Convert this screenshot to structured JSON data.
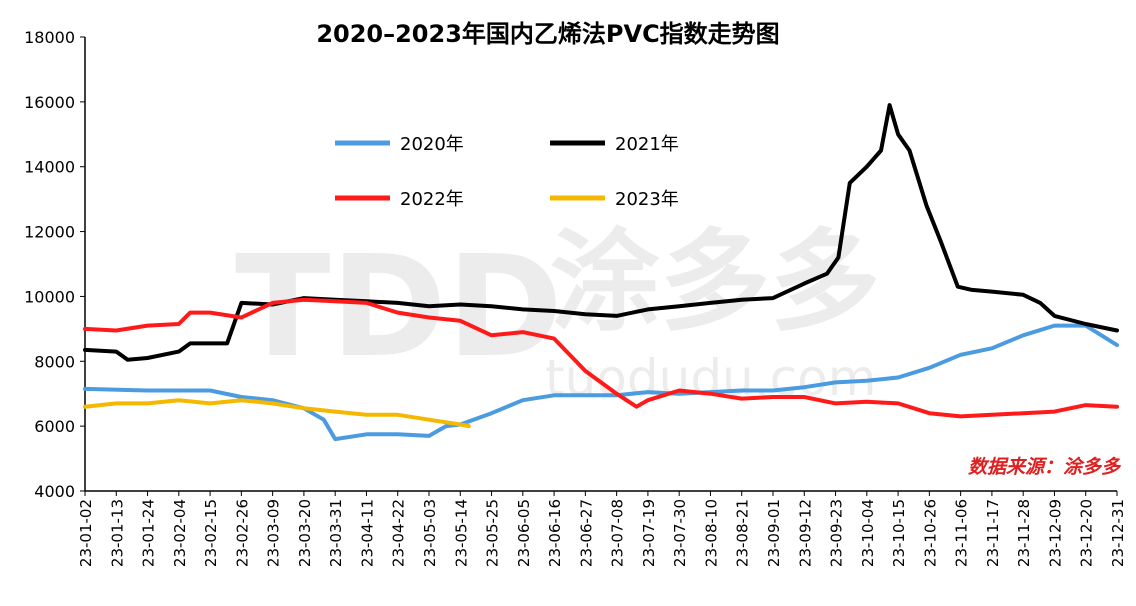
{
  "chart_data": {
    "type": "line",
    "title": "2020–2023年国内乙烯法PVC指数走势图",
    "source_note": "数据来源：涂多多",
    "watermark": "TDD 涂多多 tuodudu.com",
    "ylim": [
      4000,
      18000
    ],
    "yticks": [
      4000,
      6000,
      8000,
      10000,
      12000,
      14000,
      16000,
      18000
    ],
    "xticks": [
      "23-01-02",
      "23-01-13",
      "23-01-24",
      "23-02-04",
      "23-02-15",
      "23-02-26",
      "23-03-09",
      "23-03-20",
      "23-03-31",
      "23-04-11",
      "23-04-22",
      "23-05-03",
      "23-05-14",
      "23-05-25",
      "23-06-05",
      "23-06-16",
      "23-06-27",
      "23-07-08",
      "23-07-19",
      "23-07-30",
      "23-08-10",
      "23-08-21",
      "23-09-01",
      "23-09-12",
      "23-09-23",
      "23-10-04",
      "23-10-15",
      "23-10-26",
      "23-11-06",
      "23-11-17",
      "23-11-28",
      "23-12-09",
      "23-12-20",
      "23-12-31"
    ],
    "grid": false,
    "legend_placement": "top-center",
    "series": [
      {
        "name": "2020年",
        "color": "#4a9be0",
        "points": [
          [
            "23-01-02",
            7150
          ],
          [
            "23-01-24",
            7100
          ],
          [
            "23-02-15",
            7100
          ],
          [
            "23-02-26",
            6900
          ],
          [
            "23-03-09",
            6800
          ],
          [
            "23-03-20",
            6550
          ],
          [
            "23-03-27",
            6200
          ],
          [
            "23-03-31",
            5600
          ],
          [
            "23-04-11",
            5750
          ],
          [
            "23-04-22",
            5750
          ],
          [
            "23-05-03",
            5700
          ],
          [
            "23-05-09",
            6000
          ],
          [
            "23-05-14",
            6050
          ],
          [
            "23-05-25",
            6400
          ],
          [
            "23-06-05",
            6800
          ],
          [
            "23-06-16",
            6950
          ],
          [
            "23-06-27",
            6950
          ],
          [
            "23-07-08",
            6950
          ],
          [
            "23-07-19",
            7050
          ],
          [
            "23-07-30",
            7000
          ],
          [
            "23-08-10",
            7050
          ],
          [
            "23-08-21",
            7100
          ],
          [
            "23-09-01",
            7100
          ],
          [
            "23-09-12",
            7200
          ],
          [
            "23-09-23",
            7350
          ],
          [
            "23-10-04",
            7400
          ],
          [
            "23-10-15",
            7500
          ],
          [
            "23-10-26",
            7800
          ],
          [
            "23-11-06",
            8200
          ],
          [
            "23-11-17",
            8400
          ],
          [
            "23-11-28",
            8800
          ],
          [
            "23-12-09",
            9100
          ],
          [
            "23-12-20",
            9100
          ],
          [
            "23-12-31",
            8500
          ]
        ]
      },
      {
        "name": "2021年",
        "color": "#000000",
        "points": [
          [
            "23-01-02",
            8350
          ],
          [
            "23-01-13",
            8300
          ],
          [
            "23-01-17",
            8050
          ],
          [
            "23-01-24",
            8100
          ],
          [
            "23-02-04",
            8300
          ],
          [
            "23-02-08",
            8550
          ],
          [
            "23-02-21",
            8550
          ],
          [
            "23-02-26",
            9800
          ],
          [
            "23-03-09",
            9750
          ],
          [
            "23-03-20",
            9950
          ],
          [
            "23-03-31",
            9900
          ],
          [
            "23-04-11",
            9850
          ],
          [
            "23-04-22",
            9800
          ],
          [
            "23-05-03",
            9700
          ],
          [
            "23-05-14",
            9750
          ],
          [
            "23-05-25",
            9700
          ],
          [
            "23-06-05",
            9600
          ],
          [
            "23-06-16",
            9550
          ],
          [
            "23-06-27",
            9450
          ],
          [
            "23-07-08",
            9400
          ],
          [
            "23-07-19",
            9600
          ],
          [
            "23-07-30",
            9700
          ],
          [
            "23-08-10",
            9800
          ],
          [
            "23-08-21",
            9900
          ],
          [
            "23-09-01",
            9950
          ],
          [
            "23-09-12",
            10400
          ],
          [
            "23-09-20",
            10700
          ],
          [
            "23-09-24",
            11200
          ],
          [
            "23-09-28",
            13500
          ],
          [
            "23-10-04",
            14000
          ],
          [
            "23-10-09",
            14500
          ],
          [
            "23-10-12",
            15900
          ],
          [
            "23-10-15",
            15000
          ],
          [
            "23-10-19",
            14500
          ],
          [
            "23-10-25",
            12800
          ],
          [
            "23-10-30",
            11700
          ],
          [
            "23-11-05",
            10300
          ],
          [
            "23-11-10",
            10200
          ],
          [
            "23-11-17",
            10150
          ],
          [
            "23-11-28",
            10050
          ],
          [
            "23-12-04",
            9800
          ],
          [
            "23-12-09",
            9400
          ],
          [
            "23-12-20",
            9150
          ],
          [
            "23-12-31",
            8950
          ]
        ]
      },
      {
        "name": "2022年",
        "color": "#ff1a1a",
        "points": [
          [
            "23-01-02",
            9000
          ],
          [
            "23-01-13",
            8950
          ],
          [
            "23-01-24",
            9100
          ],
          [
            "23-02-04",
            9150
          ],
          [
            "23-02-08",
            9500
          ],
          [
            "23-02-15",
            9500
          ],
          [
            "23-02-26",
            9350
          ],
          [
            "23-03-09",
            9800
          ],
          [
            "23-03-20",
            9900
          ],
          [
            "23-03-31",
            9850
          ],
          [
            "23-04-11",
            9800
          ],
          [
            "23-04-22",
            9500
          ],
          [
            "23-05-03",
            9350
          ],
          [
            "23-05-14",
            9250
          ],
          [
            "23-05-25",
            8800
          ],
          [
            "23-06-05",
            8900
          ],
          [
            "23-06-16",
            8700
          ],
          [
            "23-06-27",
            7700
          ],
          [
            "23-07-08",
            7000
          ],
          [
            "23-07-15",
            6600
          ],
          [
            "23-07-19",
            6800
          ],
          [
            "23-07-30",
            7100
          ],
          [
            "23-08-10",
            7000
          ],
          [
            "23-08-21",
            6850
          ],
          [
            "23-09-01",
            6900
          ],
          [
            "23-09-12",
            6900
          ],
          [
            "23-09-23",
            6700
          ],
          [
            "23-10-04",
            6750
          ],
          [
            "23-10-15",
            6700
          ],
          [
            "23-10-26",
            6400
          ],
          [
            "23-11-06",
            6300
          ],
          [
            "23-11-17",
            6350
          ],
          [
            "23-11-28",
            6400
          ],
          [
            "23-12-09",
            6450
          ],
          [
            "23-12-20",
            6650
          ],
          [
            "23-12-31",
            6600
          ]
        ]
      },
      {
        "name": "2023年",
        "color": "#f5b800",
        "points": [
          [
            "23-01-02",
            6600
          ],
          [
            "23-01-13",
            6700
          ],
          [
            "23-01-24",
            6700
          ],
          [
            "23-02-04",
            6800
          ],
          [
            "23-02-15",
            6700
          ],
          [
            "23-02-26",
            6800
          ],
          [
            "23-03-09",
            6700
          ],
          [
            "23-03-20",
            6550
          ],
          [
            "23-03-31",
            6450
          ],
          [
            "23-04-11",
            6350
          ],
          [
            "23-04-22",
            6350
          ],
          [
            "23-05-03",
            6200
          ],
          [
            "23-05-14",
            6050
          ],
          [
            "23-05-17",
            6000
          ]
        ]
      }
    ]
  }
}
